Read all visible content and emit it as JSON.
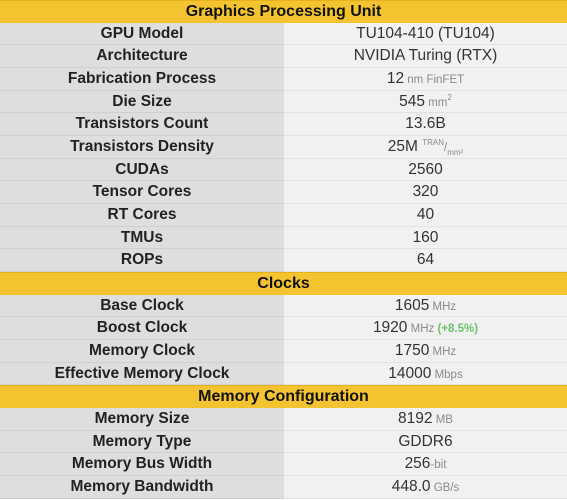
{
  "sections": [
    {
      "title": "Graphics Processing Unit",
      "rows": [
        {
          "label": "GPU Model",
          "value": "TU104-410 (TU104)",
          "unit": ""
        },
        {
          "label": "Architecture",
          "value": "NVIDIA Turing (RTX)",
          "unit": ""
        },
        {
          "label": "Fabrication Process",
          "value": "12",
          "unit": " nm FinFET"
        },
        {
          "label": "Die Size",
          "value": "545",
          "unit": " mm",
          "unit_sup": "2"
        },
        {
          "label": "Transistors Count",
          "value": "13.6B",
          "unit": ""
        },
        {
          "label": "Transistors Density",
          "value": "25M",
          "unit_sup": "TRAN",
          "unit_sep": "/",
          "unit_sub": "mm²"
        },
        {
          "label": "CUDAs",
          "value": "2560",
          "unit": ""
        },
        {
          "label": "Tensor Cores",
          "value": "320",
          "unit": ""
        },
        {
          "label": "RT Cores",
          "value": "40",
          "unit": ""
        },
        {
          "label": "TMUs",
          "value": "160",
          "unit": ""
        },
        {
          "label": "ROPs",
          "value": "64",
          "unit": ""
        }
      ]
    },
    {
      "title": "Clocks",
      "rows": [
        {
          "label": "Base Clock",
          "value": "1605",
          "unit": " MHz"
        },
        {
          "label": "Boost Clock",
          "value": "1920",
          "unit": " MHz",
          "extra": " (+8.5%)"
        },
        {
          "label": "Memory Clock",
          "value": "1750",
          "unit": " MHz"
        },
        {
          "label": "Effective Memory Clock",
          "value": "14000",
          "unit": " Mbps"
        }
      ]
    },
    {
      "title": "Memory Configuration",
      "rows": [
        {
          "label": "Memory Size",
          "value": "8192",
          "unit": " MB"
        },
        {
          "label": "Memory Type",
          "value": "GDDR6",
          "unit": ""
        },
        {
          "label": "Memory Bus Width",
          "value": "256",
          "unit": "-bit"
        },
        {
          "label": "Memory Bandwidth",
          "value": "448.0",
          "unit": " GB/s"
        }
      ]
    }
  ]
}
